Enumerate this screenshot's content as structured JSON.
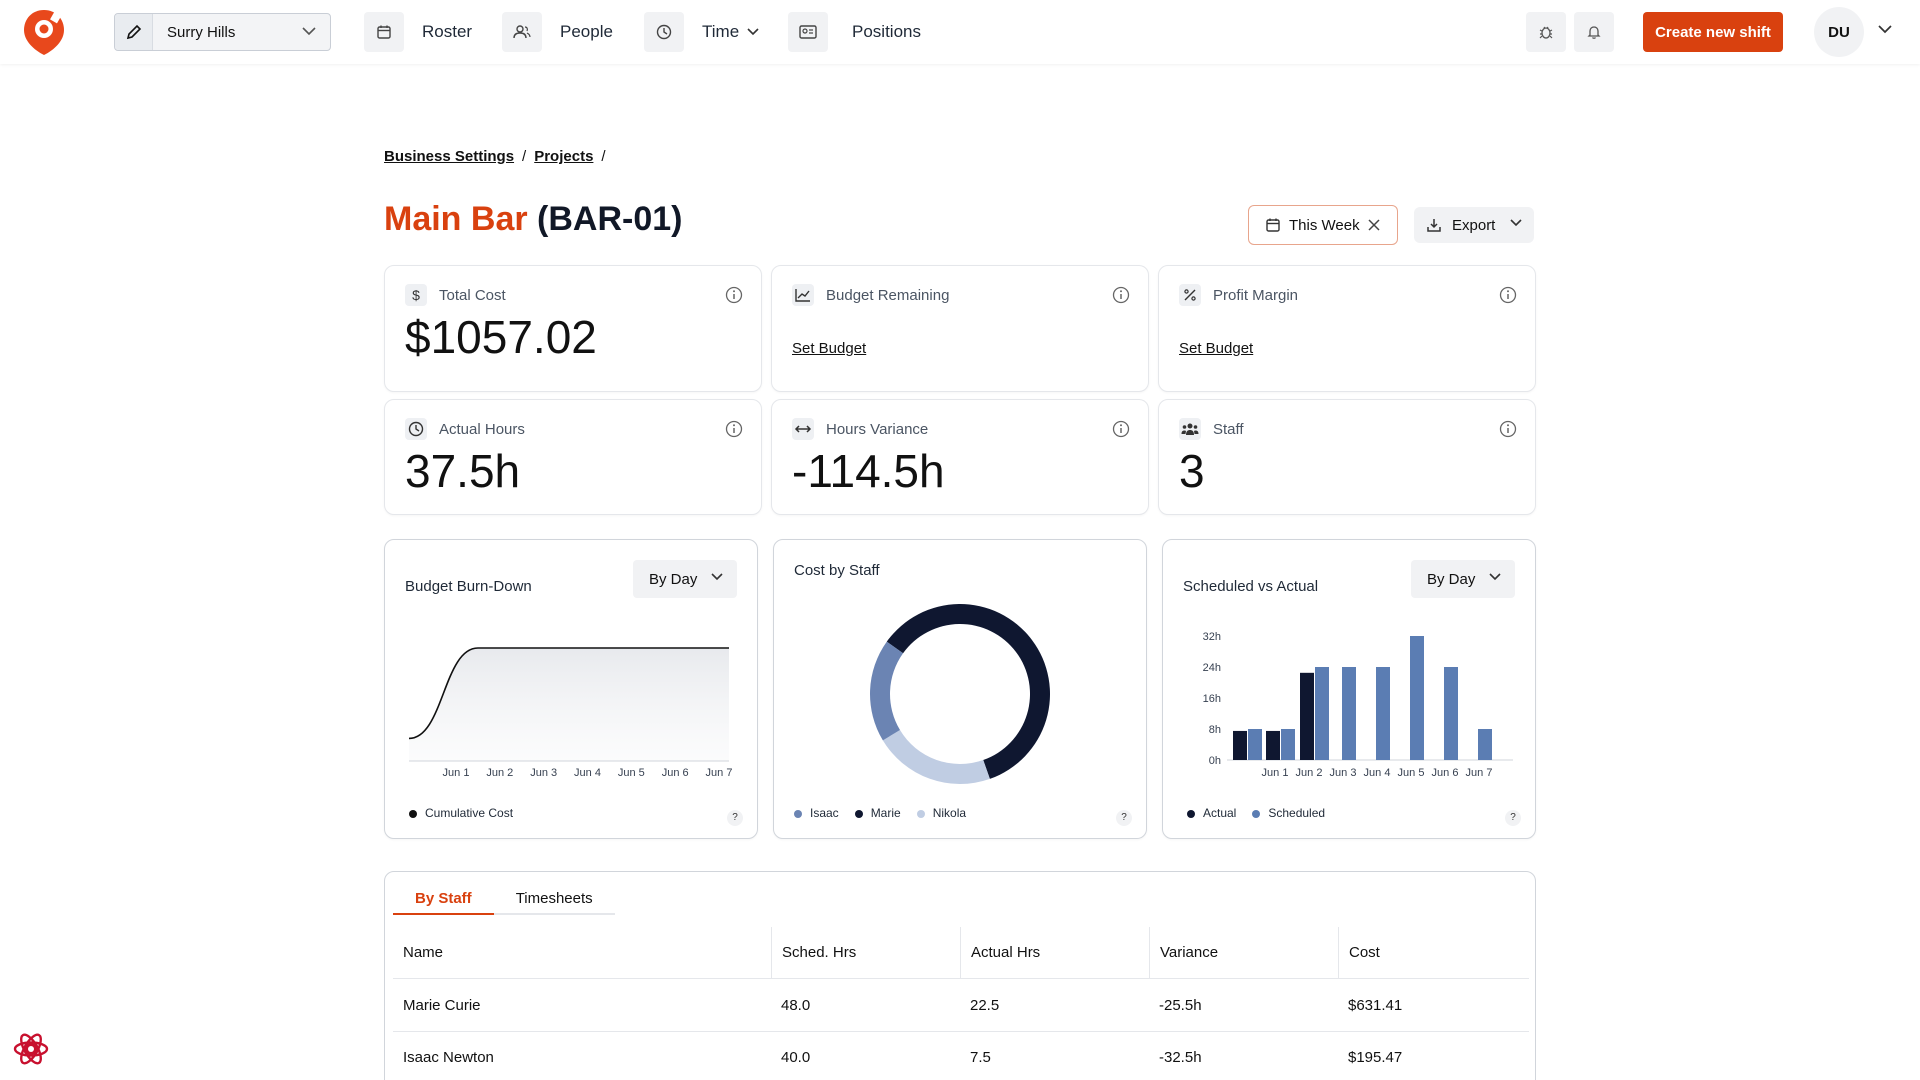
{
  "header": {
    "location": "Surry Hills",
    "nav": [
      {
        "label": "Roster",
        "icon": "calendar-icon"
      },
      {
        "label": "People",
        "icon": "people-icon"
      },
      {
        "label": "Time",
        "icon": "clock-icon"
      },
      {
        "label": "Positions",
        "icon": "id-card-icon"
      }
    ],
    "create_label": "Create new shift",
    "avatar_initials": "DU"
  },
  "breadcrumb": [
    "Business Settings",
    "Projects"
  ],
  "breadcrumb_sep": "/",
  "project": {
    "name": "Main Bar",
    "code": "(BAR-01)"
  },
  "filters": {
    "week_label": "This Week",
    "export_label": "Export"
  },
  "stats": [
    {
      "label": "Total Cost",
      "value": "$1057.02",
      "icon": "dollar-icon"
    },
    {
      "label": "Budget Remaining",
      "link": "Set Budget",
      "icon": "line-chart-icon"
    },
    {
      "label": "Profit Margin",
      "link": "Set Budget",
      "icon": "percent-icon"
    },
    {
      "label": "Actual Hours",
      "value": "37.5h",
      "icon": "clock-icon"
    },
    {
      "label": "Hours Variance",
      "value": "-114.5h",
      "icon": "arrows-horizontal-icon"
    },
    {
      "label": "Staff",
      "value": "3",
      "icon": "staff-icon"
    }
  ],
  "charts": {
    "burndown": {
      "title": "Budget Burn-Down",
      "dropdown": "By Day",
      "legend": "Cumulative Cost"
    },
    "cost_by_staff": {
      "title": "Cost by Staff"
    },
    "sched_vs_actual": {
      "title": "Scheduled vs Actual",
      "dropdown": "By Day"
    },
    "help": "?"
  },
  "chart_data": [
    {
      "type": "area",
      "title": "Budget Burn-Down",
      "categories": [
        "Jun 1",
        "Jun 2",
        "Jun 3",
        "Jun 4",
        "Jun 5",
        "Jun 6",
        "Jun 7"
      ],
      "series": [
        {
          "name": "Cumulative Cost",
          "values": [
            195.47,
            1057.02,
            1057.02,
            1057.02,
            1057.02,
            1057.02,
            1057.02
          ]
        }
      ],
      "legend": "bottom-left"
    },
    {
      "type": "pie",
      "title": "Cost by Staff",
      "labels": [
        "Isaac",
        "Marie",
        "Nikola"
      ],
      "values": [
        195.47,
        631.41,
        230.14
      ],
      "colors": [
        "#6b84b3",
        "#0f1730",
        "#c0cde3"
      ],
      "legend": "bottom-left"
    },
    {
      "type": "bar",
      "title": "Scheduled vs Actual",
      "categories": [
        "Jun 1",
        "Jun 2",
        "Jun 3",
        "Jun 4",
        "Jun 5",
        "Jun 6",
        "Jun 7"
      ],
      "yticks": [
        "0h",
        "8h",
        "16h",
        "24h",
        "32h"
      ],
      "ylim": [
        0,
        32
      ],
      "series": [
        {
          "name": "Actual",
          "color": "#0f1730",
          "values": [
            7.5,
            22.5,
            0,
            0,
            0,
            0,
            0
          ]
        },
        {
          "name": "Scheduled",
          "color": "#5b7db3",
          "values": [
            8,
            24,
            24,
            24,
            32,
            24,
            8
          ]
        }
      ],
      "extra_actual_jun1": 7.5,
      "legend": "bottom-left"
    }
  ],
  "table": {
    "tabs": [
      "By Staff",
      "Timesheets"
    ],
    "columns": [
      "Name",
      "Sched. Hrs",
      "Actual Hrs",
      "Variance",
      "Cost"
    ],
    "rows": [
      [
        "Marie Curie",
        "48.0",
        "22.5",
        "-25.5h",
        "$631.41"
      ],
      [
        "Isaac Newton",
        "40.0",
        "7.5",
        "-32.5h",
        "$195.47"
      ]
    ]
  }
}
